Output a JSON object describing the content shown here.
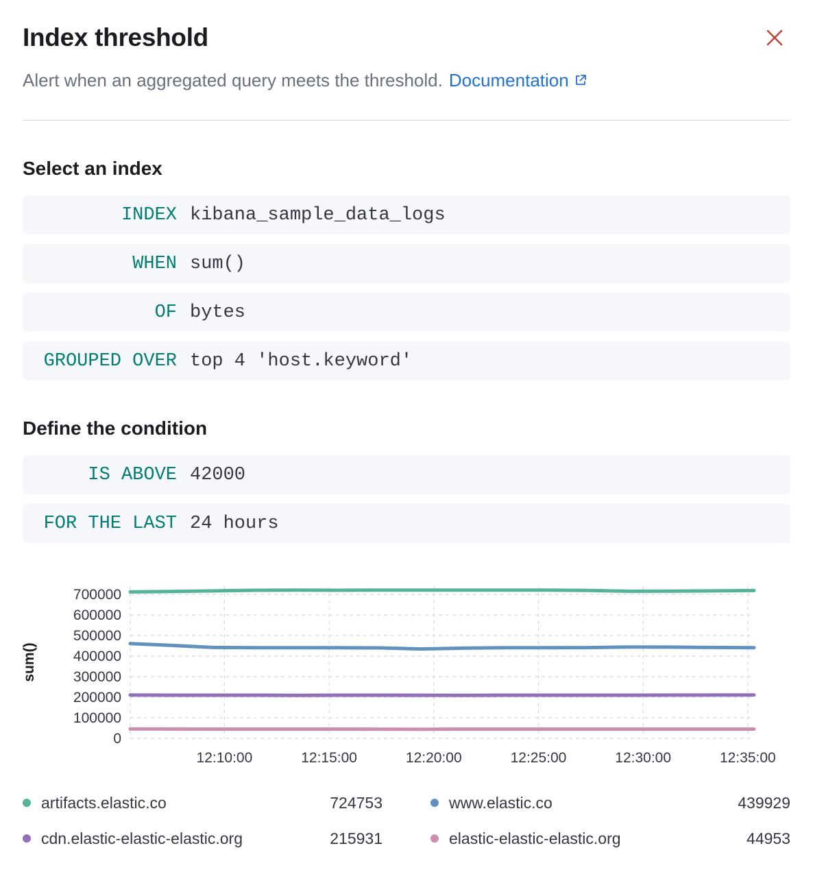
{
  "header": {
    "title": "Index threshold",
    "subtitle": "Alert when an aggregated query meets the threshold.",
    "doc_link": "Documentation"
  },
  "colors": {
    "accent_teal": "#017d73",
    "link_blue": "#2270cf",
    "close_red": "#bb443e",
    "grid": "#d3dae6"
  },
  "sections": {
    "index": {
      "heading": "Select an index",
      "expressions": [
        {
          "keyword": "INDEX",
          "value": "kibana_sample_data_logs"
        },
        {
          "keyword": "WHEN",
          "value": "sum()"
        },
        {
          "keyword": "OF",
          "value": "bytes"
        },
        {
          "keyword": "GROUPED OVER",
          "value": "top 4 'host.keyword'"
        }
      ]
    },
    "condition": {
      "heading": "Define the condition",
      "expressions": [
        {
          "keyword": "IS ABOVE",
          "value": "42000"
        },
        {
          "keyword": "FOR THE LAST",
          "value": "24 hours"
        }
      ]
    }
  },
  "chart_data": {
    "type": "line",
    "title": "",
    "xlabel": "",
    "ylabel": "sum()",
    "ylim": [
      0,
      740000
    ],
    "grid": true,
    "legend_position": "bottom",
    "yticks": [
      0,
      100000,
      200000,
      300000,
      400000,
      500000,
      600000,
      700000
    ],
    "x_range_minutes": [
      5.5,
      35.3
    ],
    "xticks": [
      {
        "minute": 10,
        "label": "12:10:00"
      },
      {
        "minute": 15,
        "label": "12:15:00"
      },
      {
        "minute": 20,
        "label": "12:20:00"
      },
      {
        "minute": 25,
        "label": "12:25:00"
      },
      {
        "minute": 30,
        "label": "12:30:00"
      },
      {
        "minute": 35,
        "label": "12:35:00"
      }
    ],
    "series": [
      {
        "name": "artifacts.elastic.co",
        "color": "#54b399",
        "latest": 724753,
        "values": [
          712000,
          714500,
          717000,
          720000,
          720500,
          720000,
          721000,
          720500,
          720500,
          721000,
          721000,
          719000,
          715500,
          716000,
          717000,
          718500
        ]
      },
      {
        "name": "www.elastic.co",
        "color": "#6092c0",
        "latest": 439929,
        "values": [
          461000,
          452000,
          442000,
          441000,
          441000,
          440500,
          440000,
          434500,
          438500,
          441000,
          440500,
          441500,
          444500,
          443500,
          442000,
          441000
        ]
      },
      {
        "name": "cdn.elastic-elastic-elastic.org",
        "color": "#9170b8",
        "latest": 215931,
        "values": [
          211000,
          210000,
          210000,
          210000,
          209500,
          210000,
          210000,
          209800,
          209500,
          210000,
          210000,
          210000,
          210000,
          210200,
          210800,
          211000
        ]
      },
      {
        "name": "elastic-elastic-elastic.org",
        "color": "#ca8eae",
        "latest": 44953,
        "values": [
          46000,
          45200,
          45000,
          45000,
          45000,
          45000,
          44800,
          44500,
          45000,
          45000,
          45000,
          45000,
          45000,
          45000,
          45000,
          44900
        ]
      }
    ]
  }
}
